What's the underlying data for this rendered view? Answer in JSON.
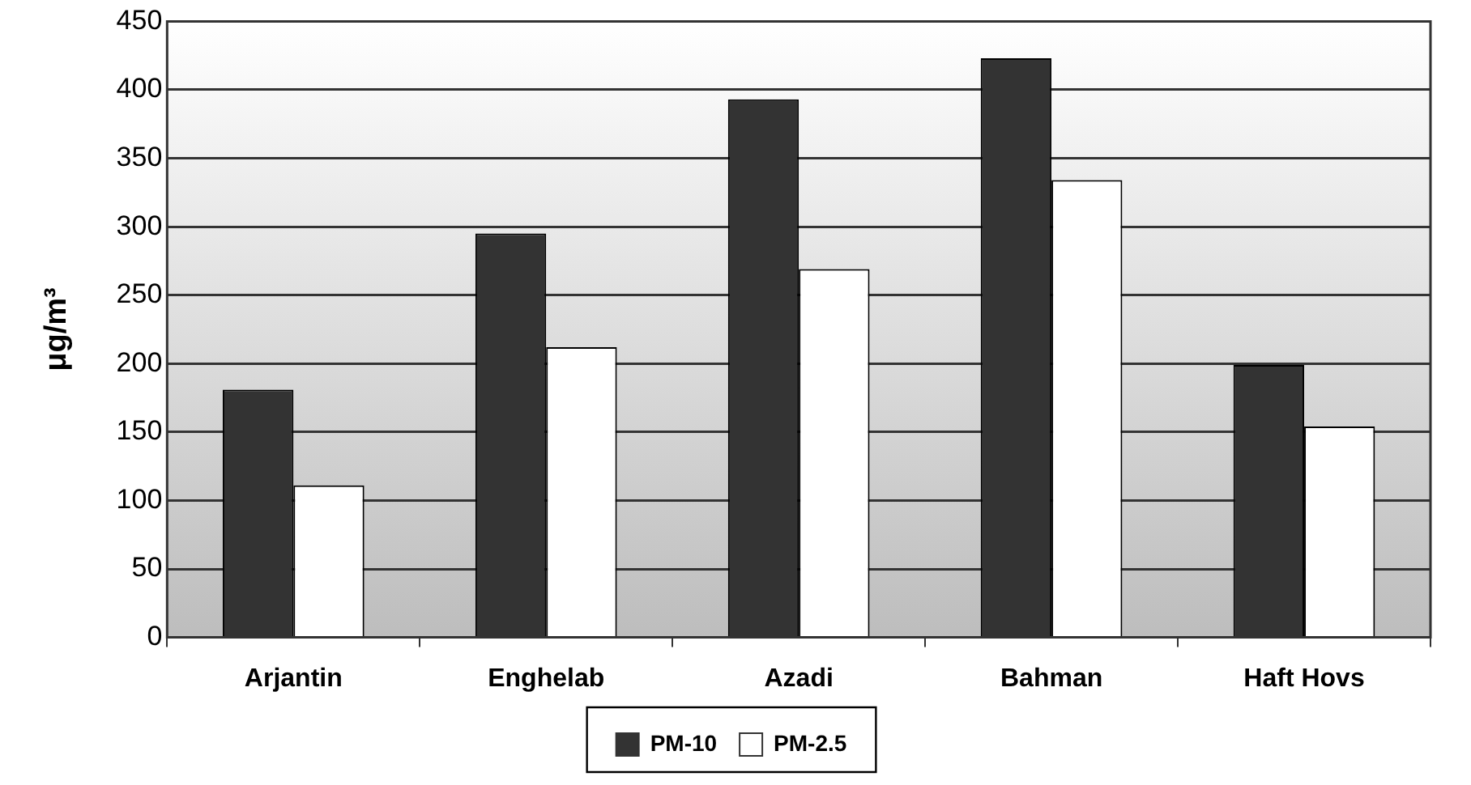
{
  "chart_data": {
    "type": "bar",
    "ylabel": "μg/m³",
    "categories": [
      "Arjantin",
      "Enghelab",
      "Azadi",
      "Bahman",
      "Haft Hovs"
    ],
    "series": [
      {
        "name": "PM-10",
        "color": "#333333",
        "values": [
          181,
          295,
          393,
          423,
          199
        ]
      },
      {
        "name": "PM-2.5",
        "color": "#ffffff",
        "values": [
          111,
          212,
          269,
          334,
          154
        ]
      }
    ],
    "ylim": [
      0,
      450
    ],
    "yticks": [
      0,
      50,
      100,
      150,
      200,
      250,
      300,
      350,
      400,
      450
    ],
    "grid": "y",
    "legend": "bottom"
  }
}
